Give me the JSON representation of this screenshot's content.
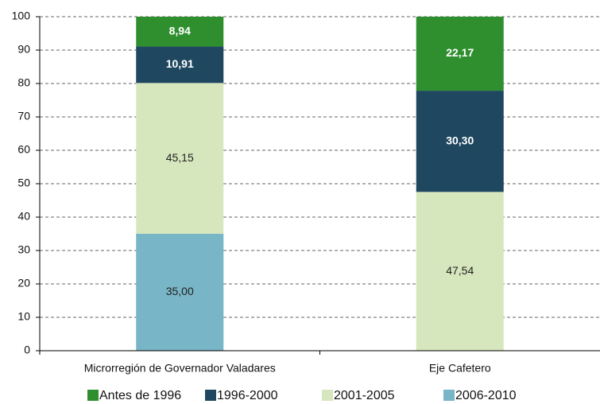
{
  "chart_data": {
    "type": "stacked_bar",
    "categories": [
      "Microrregión de Governador Valadares",
      "Eje Cafetero"
    ],
    "series": [
      {
        "name": "Antes de 1996",
        "color": "#2f8f2f",
        "values": [
          8.94,
          22.17
        ],
        "value_labels": [
          "8,94",
          "22,17"
        ]
      },
      {
        "name": "1996-2000",
        "color": "#1f4860",
        "values": [
          10.91,
          30.3
        ],
        "value_labels": [
          "10,91",
          "30,30"
        ]
      },
      {
        "name": "2001-2005",
        "color": "#d7e7bd",
        "values": [
          45.15,
          47.54
        ],
        "value_labels": [
          "45,15",
          "47,54"
        ]
      },
      {
        "name": "2006-2010",
        "color": "#78b5c6",
        "values": [
          35.0,
          null
        ],
        "value_labels": [
          "35,00",
          null
        ]
      }
    ],
    "ylim": [
      0,
      100
    ],
    "yticks": [
      0,
      10,
      20,
      30,
      40,
      50,
      60,
      70,
      80,
      90,
      100
    ],
    "grid": true,
    "legend": "bottom"
  }
}
